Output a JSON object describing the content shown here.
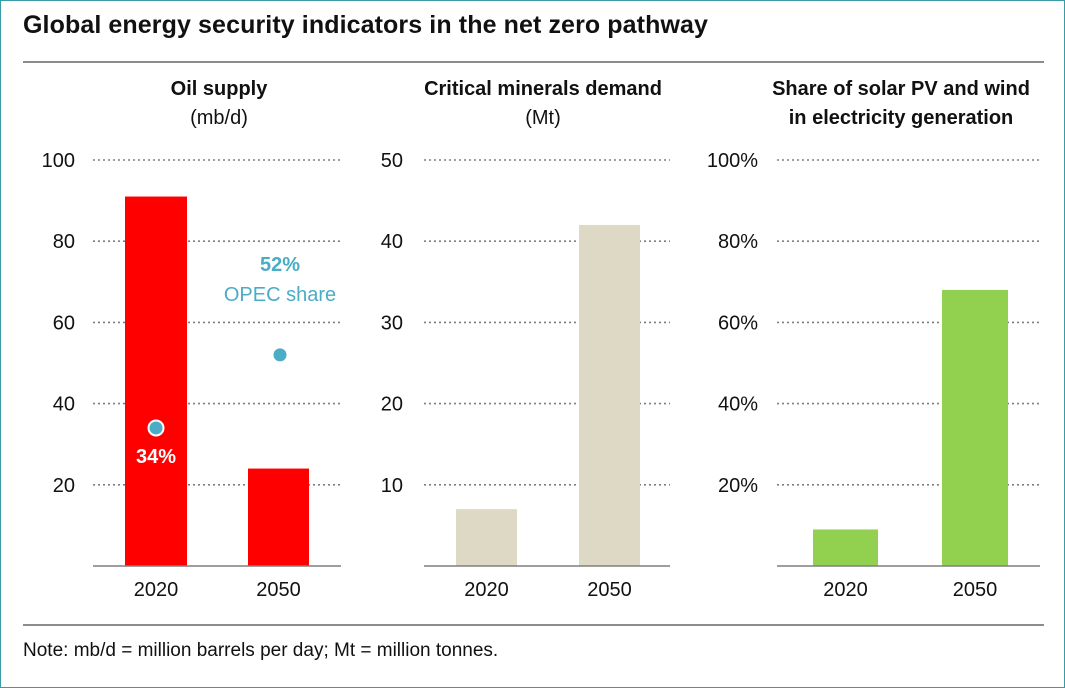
{
  "title": "Global energy security indicators in the net zero pathway",
  "note": "Note: mb/d = million barrels per day; Mt = million tonnes.",
  "colors": {
    "oil": "#ff0000",
    "minerals": "#ddd9c4",
    "renewables": "#92d050",
    "opec": "#4bacc6",
    "grid": "#7f7f7f",
    "axis": "#7f7f7f",
    "text": "#111111"
  },
  "chart_data": [
    {
      "type": "bar",
      "title": [
        "Oil supply",
        "(mb/d)"
      ],
      "title_bold": [
        true,
        false
      ],
      "categories": [
        "2020",
        "2050"
      ],
      "values": [
        91,
        24
      ],
      "ylim": [
        0,
        100
      ],
      "yticks": [
        20,
        40,
        60,
        80,
        100
      ],
      "ytick_labels": [
        "20",
        "40",
        "60",
        "80",
        "100"
      ],
      "grid": true,
      "overlay": {
        "name": "OPEC share",
        "points": [
          {
            "category": "2020",
            "y": 34,
            "label": "34%"
          },
          {
            "category": "2050",
            "y": 52,
            "label": "52%"
          }
        ],
        "annotation": "OPEC share"
      }
    },
    {
      "type": "bar",
      "title": [
        "Critical minerals demand",
        "(Mt)"
      ],
      "title_bold": [
        true,
        false
      ],
      "categories": [
        "2020",
        "2050"
      ],
      "values": [
        7,
        42
      ],
      "ylim": [
        0,
        50
      ],
      "yticks": [
        10,
        20,
        30,
        40,
        50
      ],
      "ytick_labels": [
        "10",
        "20",
        "30",
        "40",
        "50"
      ],
      "grid": true
    },
    {
      "type": "bar",
      "title": [
        "Share of solar PV and wind",
        "in electricity generation"
      ],
      "title_bold": [
        true,
        true
      ],
      "categories": [
        "2020",
        "2050"
      ],
      "values": [
        9,
        68
      ],
      "ylim": [
        0,
        100
      ],
      "yticks": [
        20,
        40,
        60,
        80,
        100
      ],
      "ytick_labels": [
        "20%",
        "40%",
        "60%",
        "80%",
        "100%"
      ],
      "grid": true
    }
  ]
}
